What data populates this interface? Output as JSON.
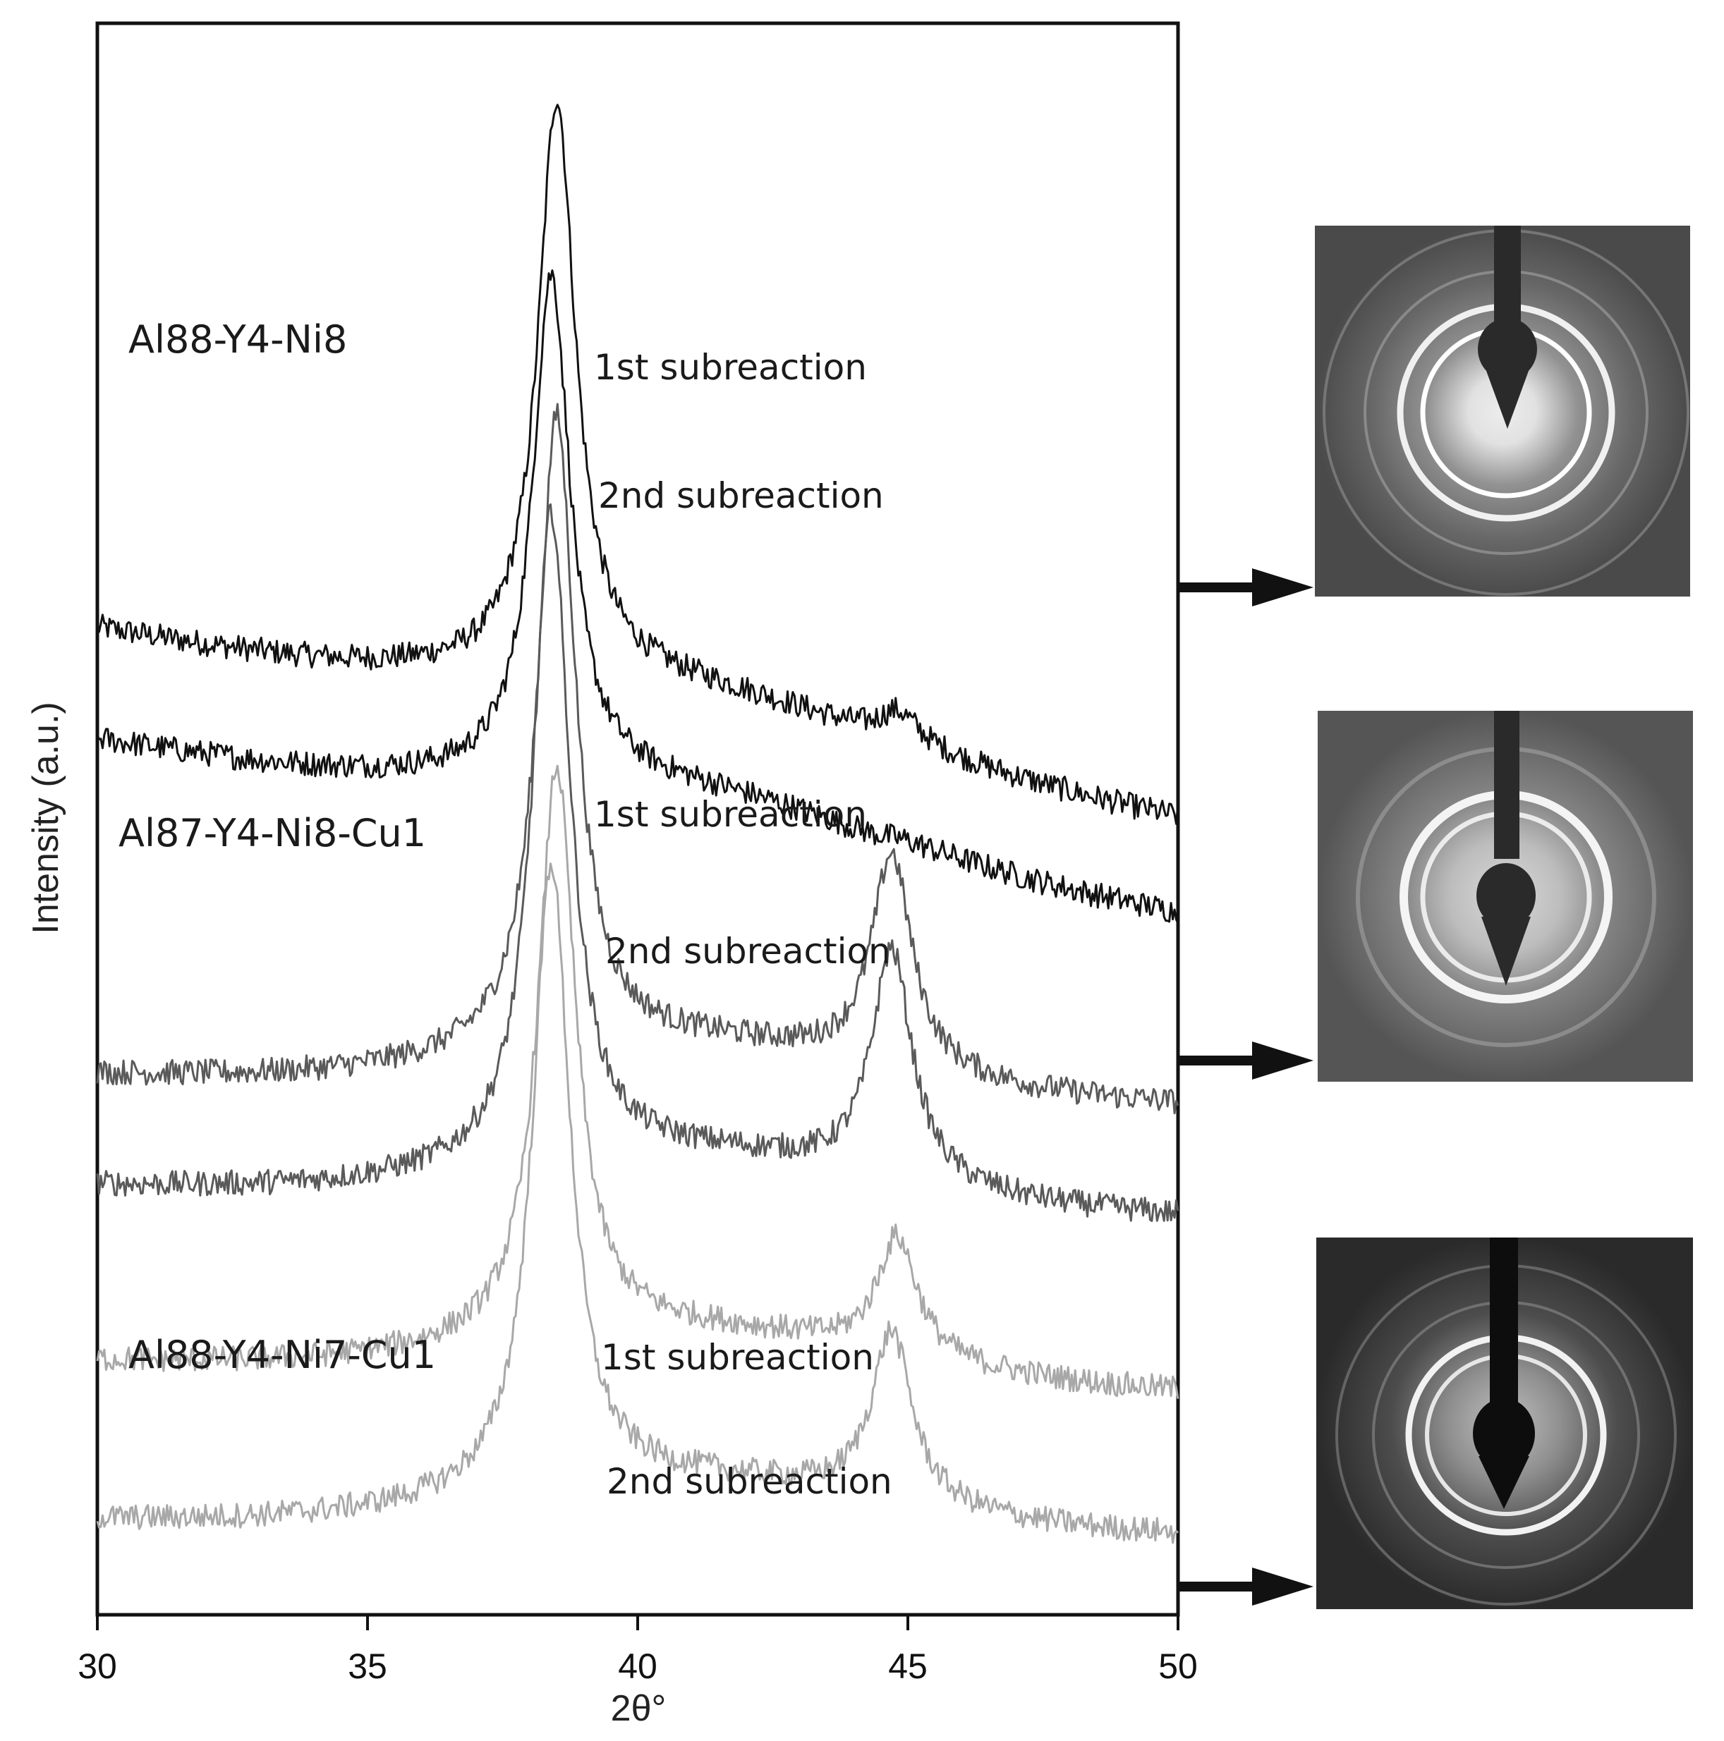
{
  "chart_data": {
    "type": "line",
    "title": "",
    "xlabel": "2θ°",
    "ylabel": "Intensity (a.u.)",
    "xlim": [
      30,
      50
    ],
    "x_ticks": [
      "30",
      "35",
      "40",
      "45",
      "50"
    ],
    "y_ticks": false,
    "grid": false,
    "legend": "none",
    "colors": {
      "Al88-Y4-Ni8": "#111111",
      "Al87-Y4-Ni8-Cu1": "#5a5a5a",
      "Al88-Y4-Ni7-Cu1": "#a8a8a8"
    },
    "samples": [
      {
        "name": "Al88-Y4-Ni8",
        "color": "#111111",
        "series": [
          {
            "name": "1st subreaction",
            "peak1_x": 38.5,
            "peak2_x": 44.8,
            "baseline_left": 0.62,
            "baseline_right": 0.5,
            "peak1_height": 0.93,
            "peak2_height": 0.55
          },
          {
            "name": "2nd subreaction",
            "peak1_x": 38.4,
            "peak2_x": 44.7,
            "baseline_left": 0.55,
            "baseline_right": 0.44,
            "peak1_height": 0.82,
            "peak2_height": 0.47
          }
        ]
      },
      {
        "name": "Al87-Y4-Ni8-Cu1",
        "color": "#5a5a5a",
        "series": [
          {
            "name": "1st subreaction",
            "peak1_x": 38.5,
            "peak2_x": 44.7,
            "baseline_left": 0.34,
            "baseline_right": 0.32,
            "peak1_height": 0.73,
            "peak2_height": 0.46
          },
          {
            "name": "2nd subreaction",
            "peak1_x": 38.4,
            "peak2_x": 44.7,
            "baseline_left": 0.27,
            "baseline_right": 0.25,
            "peak1_height": 0.67,
            "peak2_height": 0.4
          }
        ]
      },
      {
        "name": "Al88-Y4-Ni7-Cu1",
        "color": "#a8a8a8",
        "series": [
          {
            "name": "1st subreaction",
            "peak1_x": 38.5,
            "peak2_x": 44.8,
            "baseline_left": 0.16,
            "baseline_right": 0.14,
            "peak1_height": 0.51,
            "peak2_height": 0.22
          },
          {
            "name": "2nd subreaction",
            "peak1_x": 38.4,
            "peak2_x": 44.7,
            "baseline_left": 0.06,
            "baseline_right": 0.05,
            "peak1_height": 0.45,
            "peak2_height": 0.16
          }
        ]
      }
    ],
    "annotations": {
      "subreaction_1": "1st subreaction",
      "subreaction_2": "2nd subreaction"
    },
    "diffraction_patterns": [
      {
        "sample": "Al88-Y4-Ni8",
        "points_to": "2nd subreaction"
      },
      {
        "sample": "Al87-Y4-Ni8-Cu1",
        "points_to": "2nd subreaction"
      },
      {
        "sample": "Al88-Y4-Ni7-Cu1",
        "points_to": "2nd subreaction"
      }
    ]
  }
}
